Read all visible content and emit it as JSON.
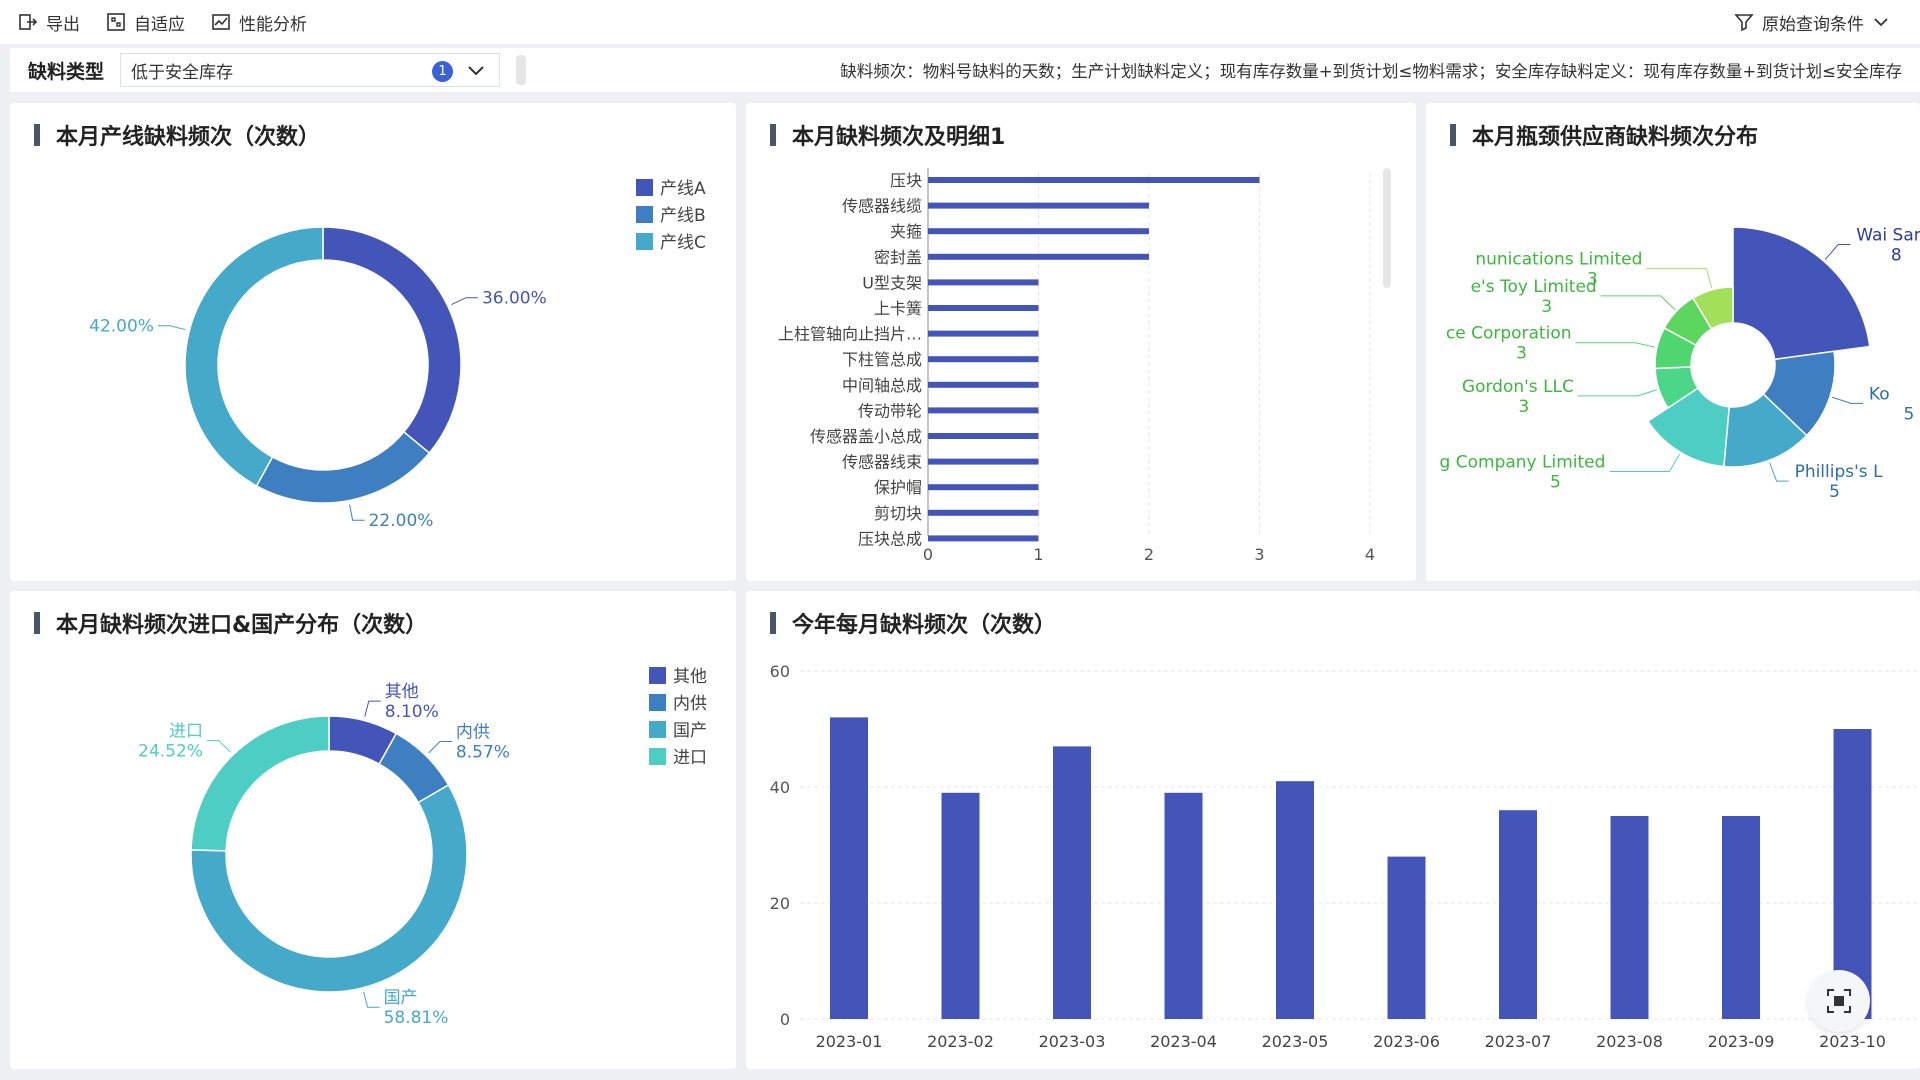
{
  "toolbar": {
    "export_label": "导出",
    "adaptive_label": "自适应",
    "perf_label": "性能分析",
    "query_label": "原始查询条件"
  },
  "filter": {
    "label": "缺料类型",
    "value": "低于安全库存",
    "count": "1",
    "note": "缺料频次：物料号缺料的天数；生产计划缺料定义；现有库存数量+到货计划≤物料需求；安全库存缺料定义：现有库存数量+到货计划≤安全库存"
  },
  "panels": {
    "line_freq": {
      "title": "本月产线缺料频次（次数）"
    },
    "detail": {
      "title": "本月缺料频次及明细1"
    },
    "supplier": {
      "title": "本月瓶颈供应商缺料频次分布"
    },
    "import_dist": {
      "title": "本月缺料频次进口&国产分布（次数）"
    },
    "monthly": {
      "title": "今年每月缺料频次（次数）"
    }
  },
  "colors": {
    "dark_blue": "#4355b9",
    "mid_blue": "#3e7fc1",
    "cyan": "#45a9c9",
    "teal": "#4ecdc4",
    "green": "#5cd65c",
    "lime": "#a3e05a"
  },
  "chart_data": [
    {
      "type": "pie",
      "title": "本月产线缺料频次（次数）",
      "legend_position": "top-right",
      "slices": [
        {
          "name": "产线A",
          "value": 36.0,
          "label": "36.00%",
          "color": "#4355b9"
        },
        {
          "name": "产线B",
          "value": 22.0,
          "label": "22.00%",
          "color": "#3e7fc1"
        },
        {
          "name": "产线C",
          "value": 42.0,
          "label": "42.00%",
          "color": "#45a9c9"
        }
      ]
    },
    {
      "type": "bar",
      "orientation": "horizontal",
      "title": "本月缺料频次及明细1",
      "categories": [
        "压块",
        "传感器线缆",
        "夹箍",
        "密封盖",
        "U型支架",
        "上卡簧",
        "上柱管轴向止挡片…",
        "下柱管总成",
        "中间轴总成",
        "传动带轮",
        "传感器盖小总成",
        "传感器线束",
        "保护帽",
        "剪切块",
        "压块总成"
      ],
      "values": [
        3,
        2,
        2,
        2,
        1,
        1,
        1,
        1,
        1,
        1,
        1,
        1,
        1,
        1,
        1
      ],
      "xlim": [
        0,
        4
      ],
      "xticks": [
        "0",
        "1",
        "2",
        "3",
        "4"
      ],
      "grid": true
    },
    {
      "type": "pie",
      "variant": "rose",
      "title": "本月瓶颈供应商缺料频次分布",
      "slices": [
        {
          "name": "Wai San I",
          "value": 8,
          "color": "#4355b9"
        },
        {
          "name": "Ko",
          "value": 5,
          "color": "#3e7fc1"
        },
        {
          "name": "Phillips's L",
          "value": 5,
          "color": "#45a9c9"
        },
        {
          "name": "gineering Company Limited",
          "value": 5,
          "color": "#4ecdc4"
        },
        {
          "name": "Gordon's LLC",
          "value": 3,
          "color": "#4cd68a"
        },
        {
          "name": "ce Corporation",
          "value": 3,
          "color": "#50d66e"
        },
        {
          "name": "e's Toy Limited",
          "value": 3,
          "color": "#5cd65c"
        },
        {
          "name": "nunications Limited",
          "value": 3,
          "color": "#a3e05a"
        }
      ]
    },
    {
      "type": "pie",
      "title": "本月缺料频次进口&国产分布（次数）",
      "legend_position": "top-right",
      "slices": [
        {
          "name": "其他",
          "value": 8.1,
          "label": "8.10%",
          "color": "#4355b9"
        },
        {
          "name": "内供",
          "value": 8.57,
          "label": "8.57%",
          "color": "#3e7fc1"
        },
        {
          "name": "国产",
          "value": 58.81,
          "label": "58.81%",
          "color": "#45a9c9"
        },
        {
          "name": "进口",
          "value": 24.52,
          "label": "24.52%",
          "color": "#4ecdc4"
        }
      ]
    },
    {
      "type": "bar",
      "title": "今年每月缺料频次（次数）",
      "categories": [
        "2023-01",
        "2023-02",
        "2023-03",
        "2023-04",
        "2023-05",
        "2023-06",
        "2023-07",
        "2023-08",
        "2023-09",
        "2023-10"
      ],
      "values": [
        52,
        39,
        47,
        39,
        41,
        28,
        36,
        35,
        35,
        50
      ],
      "ylim": [
        0,
        60
      ],
      "yticks": [
        "0",
        "20",
        "40",
        "60"
      ],
      "grid": true
    }
  ]
}
